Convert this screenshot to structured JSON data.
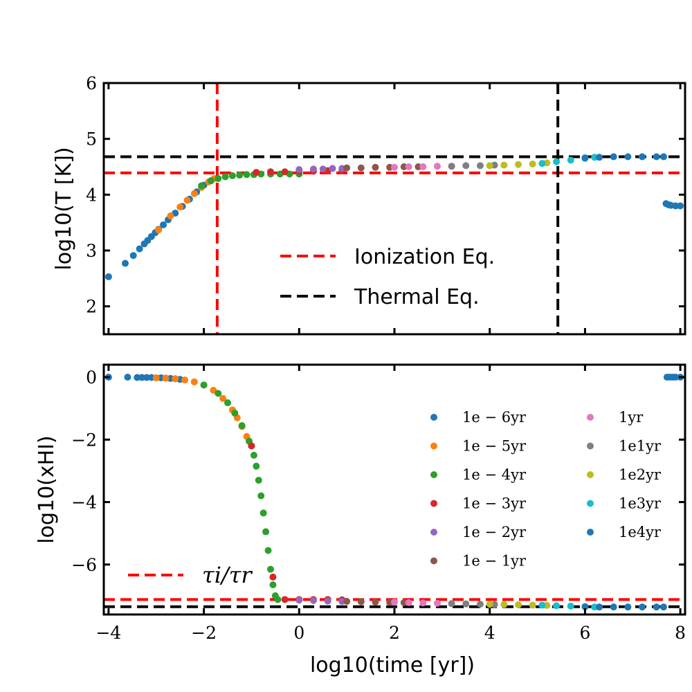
{
  "chart_data": [
    {
      "type": "scatter",
      "panel": "top",
      "xlabel": "",
      "ylabel": "log10(T [K])",
      "xlim": [
        -4.1,
        8.1
      ],
      "ylim": [
        1.5,
        6
      ],
      "xticks": [
        -4,
        -2,
        0,
        2,
        4,
        6,
        8
      ],
      "yticks": [
        2,
        3,
        4,
        5,
        6
      ],
      "ytick_labels": [
        "2",
        "3",
        "4",
        "5",
        "6"
      ],
      "reference_lines": [
        {
          "name": "Ionization Eq.",
          "orientation": "vertical",
          "value": -1.72,
          "color": "#ff0000"
        },
        {
          "name": "Ionization Eq.",
          "orientation": "horizontal",
          "value": 4.39,
          "color": "#ff0000"
        },
        {
          "name": "Thermal Eq.",
          "orientation": "vertical",
          "value": 5.43,
          "color": "#000000"
        },
        {
          "name": "Thermal Eq.",
          "orientation": "horizontal",
          "value": 4.68,
          "color": "#000000"
        }
      ],
      "legend": {
        "position": "center",
        "entries": [
          {
            "label": "Ionization Eq.",
            "color": "#ff0000",
            "style": "dashed"
          },
          {
            "label": "Thermal Eq.",
            "color": "#000000",
            "style": "dashed"
          }
        ]
      },
      "series": [
        {
          "name": "1e-6yr",
          "color": "#1f77b4",
          "x": [
            -4.0,
            -3.65,
            -3.48,
            -3.35,
            -3.25,
            -3.18,
            -3.1,
            -3.02,
            -2.95,
            -2.85,
            -2.75,
            -2.6,
            -2.45,
            -2.3,
            -2.15,
            -2.0
          ],
          "y": [
            2.53,
            2.77,
            2.91,
            3.03,
            3.12,
            3.18,
            3.25,
            3.32,
            3.38,
            3.46,
            3.55,
            3.67,
            3.79,
            3.92,
            4.05,
            4.17
          ]
        },
        {
          "name": "1e-5yr",
          "color": "#ff7f0e",
          "x": [
            -2.95,
            -2.7,
            -2.5,
            -2.35,
            -2.2,
            -2.05,
            -1.9,
            -1.78
          ],
          "y": [
            3.37,
            3.62,
            3.78,
            3.9,
            4.02,
            4.13,
            4.23,
            4.29
          ]
        },
        {
          "name": "1e-4yr",
          "color": "#2ca02c",
          "x": [
            -2.05,
            -1.85,
            -1.7,
            -1.55,
            -1.4,
            -1.25,
            -1.1,
            -0.95,
            -0.8,
            -0.6,
            -0.4,
            -0.2,
            0.0
          ],
          "y": [
            4.16,
            4.25,
            4.29,
            4.32,
            4.34,
            4.35,
            4.36,
            4.36,
            4.37,
            4.37,
            4.37,
            4.37,
            4.37
          ]
        },
        {
          "name": "1e-3yr",
          "color": "#d62728",
          "x": [
            -0.9,
            -0.6,
            -0.3,
            0.0,
            0.3,
            0.6,
            0.9
          ],
          "y": [
            4.4,
            4.41,
            4.41,
            4.42,
            4.42,
            4.43,
            4.43
          ]
        },
        {
          "name": "1e-2yr",
          "color": "#9467bd",
          "x": [
            0.0,
            0.3,
            0.5,
            0.7,
            0.9
          ],
          "y": [
            4.45,
            4.46,
            4.46,
            4.47,
            4.47
          ]
        },
        {
          "name": "1e-1yr",
          "color": "#8c564b",
          "x": [
            1.0,
            1.3,
            1.6,
            1.9,
            2.2,
            2.5
          ],
          "y": [
            4.48,
            4.48,
            4.49,
            4.49,
            4.5,
            4.5
          ]
        },
        {
          "name": "1yr",
          "color": "#e377c2",
          "x": [
            2.0,
            2.3,
            2.6,
            2.9,
            3.2
          ],
          "y": [
            4.49,
            4.5,
            4.5,
            4.51,
            4.51
          ]
        },
        {
          "name": "1e1yr",
          "color": "#7f7f7f",
          "x": [
            3.2,
            3.5,
            3.8,
            4.1
          ],
          "y": [
            4.51,
            4.52,
            4.52,
            4.53
          ]
        },
        {
          "name": "1e2yr",
          "color": "#bcbd22",
          "x": [
            4.0,
            4.3,
            4.6,
            4.9,
            5.2
          ],
          "y": [
            4.52,
            4.53,
            4.54,
            4.55,
            4.57
          ]
        },
        {
          "name": "1e3yr",
          "color": "#17becf",
          "x": [
            5.1,
            5.4,
            5.7,
            6.0,
            6.2
          ],
          "y": [
            4.56,
            4.59,
            4.62,
            4.65,
            4.67
          ]
        },
        {
          "name": "1e4yr",
          "color": "#1f77b4",
          "x": [
            6.0,
            6.3,
            6.6,
            6.9,
            7.2,
            7.5,
            7.65,
            7.7,
            7.75,
            7.8,
            7.9,
            8.0
          ],
          "y": [
            4.66,
            4.67,
            4.68,
            4.68,
            4.68,
            4.68,
            4.68,
            3.84,
            3.82,
            3.81,
            3.8,
            3.8
          ]
        }
      ]
    },
    {
      "type": "scatter",
      "panel": "bottom",
      "xlabel": "log10(time [yr])",
      "ylabel": "log10(xHI)",
      "xlim": [
        -4.1,
        8.1
      ],
      "ylim": [
        -7.6,
        0.4
      ],
      "xticks": [
        -4,
        -2,
        0,
        2,
        4,
        6,
        8
      ],
      "xtick_labels": [
        "−4",
        "−2",
        "0",
        "2",
        "4",
        "6",
        "8"
      ],
      "yticks": [
        0,
        -2,
        -4,
        -6
      ],
      "ytick_labels": [
        "0",
        "−2",
        "−4",
        "−6"
      ],
      "reference_lines": [
        {
          "name": "τi/τr",
          "orientation": "horizontal",
          "value": -7.12,
          "color": "#ff0000"
        },
        {
          "name": "thermal",
          "orientation": "horizontal",
          "value": -7.35,
          "color": "#000000"
        }
      ],
      "legend": {
        "position": "right",
        "entries": [
          {
            "label": "1e − 6yr",
            "color": "#1f77b4"
          },
          {
            "label": "1e − 5yr",
            "color": "#ff7f0e"
          },
          {
            "label": "1e − 4yr",
            "color": "#2ca02c"
          },
          {
            "label": "1e − 3yr",
            "color": "#d62728"
          },
          {
            "label": "1e − 2yr",
            "color": "#9467bd"
          },
          {
            "label": "1e − 1yr",
            "color": "#8c564b"
          },
          {
            "label": "1yr",
            "color": "#e377c2"
          },
          {
            "label": "1e1yr",
            "color": "#7f7f7f"
          },
          {
            "label": "1e2yr",
            "color": "#bcbd22"
          },
          {
            "label": "1e3yr",
            "color": "#17becf"
          },
          {
            "label": "1e4yr",
            "color": "#1f77b4"
          }
        ]
      },
      "tau_legend": {
        "label": "τi/τr",
        "color": "#ff0000"
      },
      "series": [
        {
          "name": "1e-6yr",
          "color": "#1f77b4",
          "x": [
            -4.0,
            -3.6,
            -3.4,
            -3.3,
            -3.2,
            -3.1,
            -3.0,
            -2.9,
            -2.8,
            -2.7,
            -2.6,
            -2.5
          ],
          "y": [
            0.0,
            0.0,
            -0.01,
            -0.01,
            -0.01,
            -0.01,
            -0.02,
            -0.02,
            -0.03,
            -0.04,
            -0.05,
            -0.07
          ]
        },
        {
          "name": "1e-5yr",
          "color": "#ff7f0e",
          "x": [
            -3.0,
            -2.8,
            -2.6,
            -2.4,
            -2.2,
            -2.0,
            -1.8,
            -1.6,
            -1.4,
            -1.3,
            -1.2,
            -1.1,
            -1.0
          ],
          "y": [
            -0.02,
            -0.03,
            -0.05,
            -0.09,
            -0.15,
            -0.25,
            -0.42,
            -0.68,
            -1.05,
            -1.3,
            -1.58,
            -1.9,
            -2.2
          ]
        },
        {
          "name": "1e-4yr",
          "color": "#2ca02c",
          "x": [
            -2.0,
            -1.7,
            -1.5,
            -1.35,
            -1.2,
            -1.05,
            -0.95,
            -0.9,
            -0.85,
            -0.8,
            -0.75,
            -0.7,
            -0.65,
            -0.6,
            -0.55,
            -0.5,
            -0.45
          ],
          "y": [
            -0.25,
            -0.52,
            -0.82,
            -1.15,
            -1.55,
            -2.05,
            -2.5,
            -2.85,
            -3.3,
            -3.8,
            -4.35,
            -4.95,
            -5.55,
            -6.15,
            -6.65,
            -7.0,
            -7.12
          ]
        },
        {
          "name": "1e-3yr",
          "color": "#d62728",
          "x": [
            -1.0,
            -0.55,
            -0.3,
            0.0,
            0.3,
            0.6,
            0.9
          ],
          "y": [
            -2.2,
            -6.4,
            -7.12,
            -7.12,
            -7.12,
            -7.12,
            -7.13
          ]
        },
        {
          "name": "1e-2yr",
          "color": "#9467bd",
          "x": [
            0.0,
            0.3,
            0.6,
            0.9
          ],
          "y": [
            -7.14,
            -7.15,
            -7.17,
            -7.18
          ]
        },
        {
          "name": "1e-1yr",
          "color": "#8c564b",
          "x": [
            1.0,
            1.3,
            1.6,
            1.9,
            2.2
          ],
          "y": [
            -7.18,
            -7.19,
            -7.2,
            -7.21,
            -7.22
          ]
        },
        {
          "name": "1yr",
          "color": "#e377c2",
          "x": [
            2.0,
            2.3,
            2.6,
            2.9,
            3.2
          ],
          "y": [
            -7.2,
            -7.22,
            -7.23,
            -7.24,
            -7.25
          ]
        },
        {
          "name": "1e1yr",
          "color": "#7f7f7f",
          "x": [
            3.2,
            3.5,
            3.8,
            4.1
          ],
          "y": [
            -7.25,
            -7.26,
            -7.27,
            -7.28
          ]
        },
        {
          "name": "1e2yr",
          "color": "#bcbd22",
          "x": [
            4.0,
            4.3,
            4.6,
            4.9,
            5.2
          ],
          "y": [
            -7.27,
            -7.28,
            -7.29,
            -7.3,
            -7.31
          ]
        },
        {
          "name": "1e3yr",
          "color": "#17becf",
          "x": [
            5.1,
            5.4,
            5.7,
            6.0,
            6.2
          ],
          "y": [
            -7.3,
            -7.32,
            -7.33,
            -7.35,
            -7.36
          ]
        },
        {
          "name": "1e4yr",
          "color": "#1f77b4",
          "x": [
            6.0,
            6.3,
            6.6,
            6.9,
            7.2,
            7.5,
            7.65,
            7.72,
            7.78,
            7.84,
            7.9,
            8.0
          ],
          "y": [
            -7.35,
            -7.36,
            -7.36,
            -7.36,
            -7.36,
            -7.36,
            -7.36,
            0.0,
            0.0,
            0.0,
            0.0,
            0.0
          ]
        }
      ]
    }
  ]
}
